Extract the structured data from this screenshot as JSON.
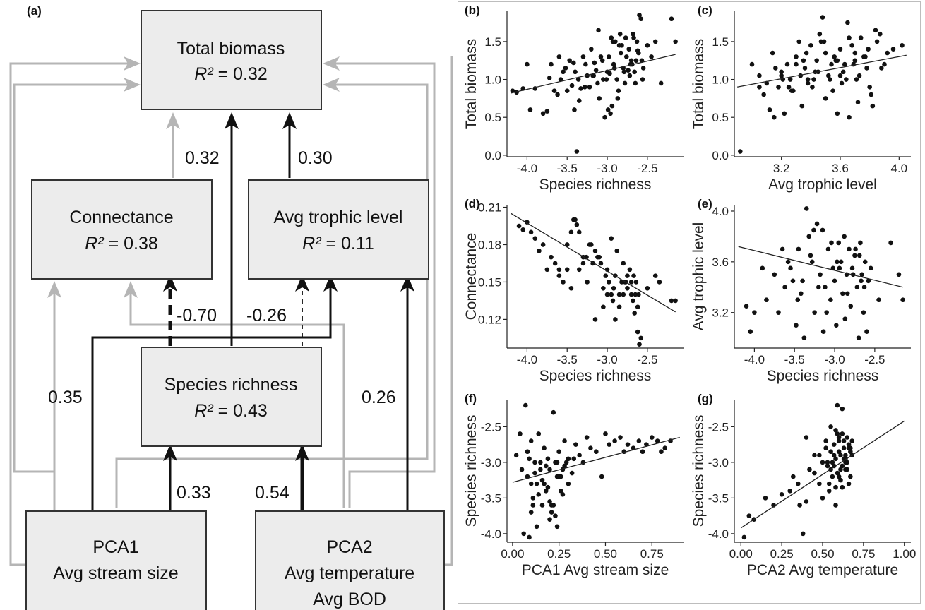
{
  "diagram": {
    "panel_label": "(a)",
    "nodes": {
      "total_biomass": {
        "title": "Total biomass",
        "r2_prefix": "R²",
        "r2_value": "= 0.32"
      },
      "connectance": {
        "title": "Connectance",
        "r2_prefix": "R²",
        "r2_value": "= 0.38"
      },
      "avg_trophic": {
        "title": "Avg trophic level",
        "r2_prefix": "R²",
        "r2_value": "= 0.11"
      },
      "species_richness": {
        "title": "Species richness",
        "r2_prefix": "R²",
        "r2_value": "= 0.43"
      },
      "pca1": {
        "line1": "PCA1",
        "line2": "Avg stream size"
      },
      "pca2": {
        "line1": "PCA2",
        "line2": "Avg temperature",
        "line3": "Avg BOD"
      }
    },
    "coefficients": {
      "connectance_to_biomass": "0.32",
      "trophic_to_biomass": "0.30",
      "richness_to_connectance": "-0.70",
      "richness_to_trophic": "-0.26",
      "pca1_to_trophic": "0.35",
      "pca2_to_trophic": "0.26",
      "pca1_to_richness": "0.33",
      "pca2_to_richness": "0.54"
    },
    "colors": {
      "significant": "#111111",
      "nonsignificant": "#b5b5b5",
      "box_fill": "#ececec"
    }
  },
  "chart_data": [
    {
      "panel": "(b)",
      "type": "scatter",
      "xlabel": "Species  richness",
      "ylabel": "Total  biomass",
      "xlim": [
        -4.25,
        -2.05
      ],
      "ylim": [
        -0.02,
        1.9
      ],
      "xticks": [
        -4.0,
        -3.5,
        -3.0,
        -2.5
      ],
      "yticks": [
        0.0,
        0.5,
        1.0,
        1.5
      ],
      "tick_labels_x": [
        "-4.0",
        "-3.5",
        "-3.0",
        "-2.5"
      ],
      "tick_labels_y": [
        "0.0",
        "0.5",
        "1.0",
        "1.5"
      ],
      "trend": {
        "x": [
          -4.2,
          -2.15
        ],
        "y": [
          0.82,
          1.33
        ]
      },
      "x": [
        -4.18,
        -4.13,
        -4.05,
        -4.0,
        -3.96,
        -3.8,
        -3.75,
        -3.72,
        -3.66,
        -3.62,
        -3.58,
        -3.55,
        -3.5,
        -3.47,
        -3.44,
        -3.41,
        -3.38,
        -3.35,
        -3.3,
        -3.27,
        -3.25,
        -3.22,
        -3.2,
        -3.17,
        -3.14,
        -3.12,
        -3.1,
        -3.08,
        -3.05,
        -3.03,
        -3.0,
        -2.98,
        -2.96,
        -2.94,
        -2.92,
        -2.9,
        -2.88,
        -2.86,
        -2.84,
        -2.82,
        -2.8,
        -2.78,
        -2.76,
        -2.74,
        -2.72,
        -2.7,
        -2.68,
        -2.66,
        -2.65,
        -2.63,
        -2.61,
        -2.6,
        -2.58,
        -2.56,
        -3.9,
        -3.6,
        -3.52,
        -3.42,
        -3.36,
        -3.28,
        -3.16,
        -3.06,
        -3.01,
        -2.97,
        -2.93,
        -2.87,
        -2.83,
        -2.79,
        -2.73,
        -2.69,
        -2.64,
        -2.57,
        -2.5,
        -2.45,
        -2.4,
        -2.33,
        -2.2,
        -2.15,
        -3.7,
        -3.33,
        -3.18,
        -3.11,
        -2.99,
        -2.91,
        -2.85,
        -2.77,
        -2.71,
        -2.67,
        -2.62,
        -2.55,
        -3.4,
        -2.95
      ],
      "y": [
        0.85,
        0.83,
        0.88,
        1.2,
        0.6,
        0.55,
        0.58,
        1.02,
        0.85,
        0.8,
        1.0,
        1.1,
        0.85,
        1.25,
        0.92,
        0.6,
        0.05,
        0.72,
        1.3,
        1.2,
        1.05,
        0.9,
        1.4,
        1.05,
        1.12,
        0.95,
        0.75,
        1.3,
        1.0,
        0.5,
        1.1,
        1.3,
        0.55,
        0.65,
        1.2,
        1.5,
        1.0,
        0.85,
        1.6,
        1.45,
        1.15,
        0.95,
        1.3,
        1.12,
        1.05,
        1.25,
        1.6,
        1.1,
        0.95,
        1.5,
        1.35,
        1.85,
        1.8,
        1.0,
        0.88,
        1.3,
        1.15,
        1.22,
        1.0,
        0.9,
        1.22,
        1.25,
        1.0,
        1.08,
        1.5,
        0.75,
        1.35,
        1.1,
        1.4,
        1.2,
        1.25,
        1.25,
        1.45,
        1.3,
        1.5,
        0.95,
        1.8,
        1.5,
        1.2,
        0.88,
        1.05,
        1.65,
        0.6,
        1.15,
        1.45,
        1.55,
        1.2,
        1.55,
        1.38,
        1.15,
        1.1,
        1.55
      ]
    },
    {
      "panel": "(c)",
      "type": "scatter",
      "xlabel": "Avg  trophic level",
      "ylabel": "Total  biomass",
      "xlim": [
        2.88,
        4.08
      ],
      "ylim": [
        -0.02,
        1.9
      ],
      "xticks": [
        3.2,
        3.6,
        4.0
      ],
      "yticks": [
        0.0,
        0.5,
        1.0,
        1.5
      ],
      "tick_labels_x": [
        "3.2",
        "3.6",
        "4.0"
      ],
      "tick_labels_y": [
        "0.0",
        "0.5",
        "1.0",
        "1.5"
      ],
      "trend": {
        "x": [
          2.9,
          4.05
        ],
        "y": [
          0.9,
          1.32
        ]
      },
      "x": [
        2.92,
        3.0,
        3.05,
        3.08,
        3.12,
        3.15,
        3.18,
        3.2,
        3.22,
        3.24,
        3.26,
        3.28,
        3.3,
        3.32,
        3.34,
        3.36,
        3.38,
        3.4,
        3.42,
        3.44,
        3.46,
        3.48,
        3.5,
        3.52,
        3.54,
        3.56,
        3.58,
        3.6,
        3.62,
        3.64,
        3.66,
        3.68,
        3.7,
        3.72,
        3.74,
        3.76,
        3.78,
        3.8,
        3.82,
        3.85,
        3.88,
        3.92,
        3.96,
        4.02,
        3.1,
        3.16,
        3.21,
        3.27,
        3.33,
        3.37,
        3.41,
        3.45,
        3.49,
        3.53,
        3.57,
        3.61,
        3.65,
        3.69,
        3.73,
        3.77,
        3.81,
        3.87,
        3.14,
        3.25,
        3.35,
        3.43,
        3.55,
        3.63,
        3.71,
        3.79,
        3.9,
        3.05,
        3.2,
        3.3,
        3.5,
        3.6,
        3.7,
        3.84,
        3.47,
        3.58,
        3.38,
        3.66
      ],
      "y": [
        0.05,
        1.2,
        1.05,
        0.8,
        0.6,
        0.5,
        0.9,
        1.1,
        0.55,
        1.2,
        1.0,
        0.85,
        1.3,
        1.5,
        0.65,
        1.15,
        0.95,
        1.45,
        1.0,
        1.25,
        1.6,
        1.82,
        0.75,
        1.05,
        1.2,
        1.3,
        0.55,
        1.4,
        1.1,
        1.0,
        0.5,
        1.45,
        1.25,
        0.7,
        1.55,
        1.3,
        1.15,
        0.9,
        0.65,
        1.5,
        1.15,
        1.35,
        1.4,
        1.45,
        0.95,
        1.15,
        1.0,
        0.85,
        1.05,
        1.35,
        0.9,
        1.1,
        1.5,
        1.0,
        1.25,
        0.95,
        1.75,
        1.2,
        1.05,
        1.3,
        0.8,
        1.6,
        1.35,
        0.9,
        1.25,
        1.1,
        0.85,
        1.2,
        1.0,
        1.4,
        1.2,
        0.9,
        1.05,
        1.2,
        1.35,
        1.05,
        1.35,
        1.65,
        1.5,
        1.25,
        1.0,
        1.55
      ]
    },
    {
      "panel": "(d)",
      "type": "scatter",
      "xlabel": "Species  richness",
      "ylabel": "Connectance",
      "xlim": [
        -4.25,
        -2.05
      ],
      "ylim": [
        0.097,
        0.212
      ],
      "xticks": [
        -4.0,
        -3.5,
        -3.0,
        -2.5
      ],
      "yticks": [
        0.12,
        0.15,
        0.18,
        0.21
      ],
      "tick_labels_x": [
        "-4.0",
        "-3.5",
        "-3.0",
        "-2.5"
      ],
      "tick_labels_y": [
        "0.12",
        "0.15",
        "0.18",
        "0.21"
      ],
      "trend": {
        "x": [
          -4.2,
          -2.15
        ],
        "y": [
          0.205,
          0.126
        ]
      },
      "x": [
        -4.1,
        -4.05,
        -4.0,
        -3.95,
        -3.9,
        -3.85,
        -3.8,
        -3.75,
        -3.7,
        -3.65,
        -3.6,
        -3.55,
        -3.5,
        -3.45,
        -3.42,
        -3.38,
        -3.35,
        -3.3,
        -3.26,
        -3.22,
        -3.18,
        -3.15,
        -3.12,
        -3.08,
        -3.05,
        -3.02,
        -3.0,
        -2.98,
        -2.95,
        -2.92,
        -2.9,
        -2.88,
        -2.85,
        -2.82,
        -2.8,
        -2.78,
        -2.75,
        -2.72,
        -2.7,
        -2.68,
        -2.66,
        -2.64,
        -2.62,
        -2.6,
        -2.58,
        -2.5,
        -2.4,
        -2.35,
        -2.2,
        -2.15,
        -3.5,
        -3.4,
        -3.3,
        -3.2,
        -3.1,
        -3.0,
        -2.9,
        -2.8,
        -2.7,
        -2.65,
        -3.6,
        -3.45,
        -3.25,
        -3.15,
        -2.95,
        -2.85,
        -2.75,
        -2.67,
        -2.61,
        -3.35,
        -3.05,
        -2.93,
        -2.77,
        -2.62
      ],
      "y": [
        0.195,
        0.192,
        0.198,
        0.19,
        0.185,
        0.175,
        0.18,
        0.16,
        0.17,
        0.165,
        0.155,
        0.15,
        0.16,
        0.145,
        0.2,
        0.196,
        0.19,
        0.17,
        0.17,
        0.18,
        0.165,
        0.175,
        0.17,
        0.165,
        0.13,
        0.155,
        0.14,
        0.15,
        0.185,
        0.145,
        0.12,
        0.175,
        0.14,
        0.15,
        0.165,
        0.15,
        0.155,
        0.16,
        0.14,
        0.135,
        0.125,
        0.15,
        0.11,
        0.1,
        0.105,
        0.145,
        0.155,
        0.15,
        0.135,
        0.135,
        0.18,
        0.2,
        0.165,
        0.18,
        0.17,
        0.16,
        0.155,
        0.14,
        0.15,
        0.14,
        0.16,
        0.19,
        0.15,
        0.12,
        0.14,
        0.13,
        0.145,
        0.155,
        0.14,
        0.16,
        0.145,
        0.135,
        0.15,
        0.13
      ]
    },
    {
      "panel": "(e)",
      "type": "scatter",
      "xlabel": "Species  richness",
      "ylabel": "Avg  trophic level",
      "xlim": [
        -4.25,
        -2.05
      ],
      "ylim": [
        2.92,
        4.05
      ],
      "xticks": [
        -4.0,
        -3.5,
        -3.0,
        -2.5
      ],
      "yticks": [
        3.2,
        3.6,
        4.0
      ],
      "tick_labels_x": [
        "-4.0",
        "-3.5",
        "-3.0",
        "-2.5"
      ],
      "tick_labels_y": [
        "3.2",
        "3.6",
        "4.0"
      ],
      "trend": {
        "x": [
          -4.2,
          -2.15
        ],
        "y": [
          3.72,
          3.4
        ]
      },
      "x": [
        -4.1,
        -4.05,
        -4.0,
        -3.9,
        -3.85,
        -3.75,
        -3.7,
        -3.62,
        -3.58,
        -3.52,
        -3.48,
        -3.45,
        -3.42,
        -3.38,
        -3.35,
        -3.32,
        -3.28,
        -3.25,
        -3.22,
        -3.18,
        -3.15,
        -3.12,
        -3.08,
        -3.05,
        -3.02,
        -3.0,
        -2.98,
        -2.95,
        -2.92,
        -2.9,
        -2.88,
        -2.85,
        -2.82,
        -2.8,
        -2.78,
        -2.75,
        -2.72,
        -2.7,
        -2.68,
        -2.66,
        -2.64,
        -2.62,
        -2.6,
        -2.58,
        -2.55,
        -2.45,
        -2.3,
        -2.2,
        -2.15,
        -3.55,
        -3.4,
        -3.3,
        -3.2,
        -3.1,
        -2.97,
        -2.87,
        -2.77,
        -2.69,
        -2.63,
        -3.65,
        -3.46,
        -3.26,
        -3.14,
        -3.04,
        -2.94,
        -2.84,
        -2.74,
        -2.67
      ],
      "y": [
        3.25,
        3.05,
        3.2,
        3.55,
        3.3,
        3.5,
        3.2,
        3.4,
        3.6,
        3.45,
        3.1,
        3.7,
        3.35,
        3.0,
        4.02,
        3.8,
        3.6,
        3.2,
        3.9,
        3.5,
        3.85,
        3.4,
        3.7,
        3.3,
        3.55,
        3.45,
        3.1,
        3.75,
        3.6,
        3.35,
        3.8,
        3.5,
        3.7,
        3.25,
        3.55,
        3.65,
        3.4,
        3.0,
        3.75,
        3.5,
        3.2,
        3.6,
        3.05,
        3.45,
        3.55,
        3.3,
        3.75,
        3.5,
        3.3,
        3.55,
        3.45,
        3.65,
        3.4,
        3.2,
        3.6,
        3.15,
        3.5,
        3.65,
        3.4,
        3.7,
        3.3,
        3.85,
        3.05,
        3.75,
        3.55,
        3.35,
        3.7,
        3.45
      ]
    },
    {
      "panel": "(f)",
      "type": "scatter",
      "xlabel": "PCA1  Avg   stream size",
      "ylabel": "Species  richness",
      "xlim": [
        -0.03,
        0.92
      ],
      "ylim": [
        -4.12,
        -2.12
      ],
      "xticks": [
        0.0,
        0.25,
        0.5,
        0.75
      ],
      "yticks": [
        -4.0,
        -3.5,
        -3.0,
        -2.5
      ],
      "tick_labels_x": [
        "0.00",
        "0.25",
        "0.50",
        "0.75"
      ],
      "tick_labels_y": [
        "-4.0",
        "-3.5",
        "-3.0",
        "-2.5"
      ],
      "trend": {
        "x": [
          0.0,
          0.9
        ],
        "y": [
          -3.28,
          -2.65
        ]
      },
      "x": [
        0.02,
        0.04,
        0.06,
        0.07,
        0.08,
        0.09,
        0.1,
        0.11,
        0.12,
        0.13,
        0.14,
        0.15,
        0.16,
        0.17,
        0.18,
        0.19,
        0.2,
        0.21,
        0.22,
        0.23,
        0.24,
        0.25,
        0.26,
        0.27,
        0.28,
        0.29,
        0.3,
        0.32,
        0.34,
        0.36,
        0.38,
        0.4,
        0.42,
        0.45,
        0.48,
        0.5,
        0.52,
        0.55,
        0.58,
        0.6,
        0.62,
        0.65,
        0.68,
        0.7,
        0.72,
        0.75,
        0.78,
        0.8,
        0.82,
        0.85,
        0.05,
        0.08,
        0.1,
        0.12,
        0.14,
        0.16,
        0.18,
        0.2,
        0.22,
        0.24,
        0.26,
        0.28,
        0.3,
        0.33,
        0.1,
        0.13,
        0.15,
        0.17,
        0.19,
        0.21,
        0.23,
        0.25,
        0.27,
        0.09,
        0.11,
        0.2,
        0.24
      ],
      "y": [
        -2.9,
        -2.6,
        -4.0,
        -2.2,
        -3.2,
        -4.05,
        -2.7,
        -3.5,
        -3.0,
        -3.3,
        -2.6,
        -3.1,
        -3.6,
        -2.8,
        -3.4,
        -2.95,
        -3.1,
        -3.7,
        -2.3,
        -3.0,
        -3.2,
        -2.85,
        -3.4,
        -3.1,
        -2.7,
        -3.0,
        -2.95,
        -3.15,
        -2.75,
        -2.9,
        -3.0,
        -2.65,
        -2.8,
        -2.85,
        -3.2,
        -2.6,
        -2.75,
        -2.7,
        -2.65,
        -2.85,
        -2.75,
        -2.8,
        -2.7,
        -2.85,
        -2.75,
        -2.65,
        -2.7,
        -2.85,
        -2.8,
        -2.7,
        -3.1,
        -2.85,
        -3.3,
        -3.15,
        -3.45,
        -3.25,
        -3.05,
        -3.55,
        -3.6,
        -3.9,
        -3.2,
        -3.05,
        -3.3,
        -2.95,
        -3.7,
        -3.9,
        -3.0,
        -3.3,
        -3.35,
        -3.6,
        -3.75,
        -3.2,
        -3.45,
        -2.95,
        -3.6,
        -3.8,
        -3.0
      ]
    },
    {
      "panel": "(g)",
      "type": "scatter",
      "xlabel": "PCA2  Avg   temperature",
      "ylabel": "Species  richness",
      "xlim": [
        -0.04,
        1.04
      ],
      "ylim": [
        -4.12,
        -2.12
      ],
      "xticks": [
        0.0,
        0.25,
        0.5,
        0.75,
        1.0
      ],
      "yticks": [
        -4.0,
        -3.5,
        -3.0,
        -2.5
      ],
      "tick_labels_x": [
        "0.00",
        "0.25",
        "0.50",
        "0.75",
        "1.00"
      ],
      "tick_labels_y": [
        "-4.0",
        "-3.5",
        "-3.0",
        "-2.5"
      ],
      "trend": {
        "x": [
          0.0,
          1.0
        ],
        "y": [
          -3.92,
          -2.42
        ]
      },
      "x": [
        0.02,
        0.05,
        0.08,
        0.15,
        0.2,
        0.25,
        0.3,
        0.32,
        0.35,
        0.38,
        0.4,
        0.42,
        0.45,
        0.48,
        0.5,
        0.52,
        0.54,
        0.55,
        0.56,
        0.57,
        0.58,
        0.59,
        0.6,
        0.61,
        0.62,
        0.63,
        0.64,
        0.65,
        0.66,
        0.67,
        0.68,
        0.52,
        0.53,
        0.55,
        0.57,
        0.58,
        0.59,
        0.6,
        0.61,
        0.62,
        0.63,
        0.64,
        0.65,
        0.66,
        0.67,
        0.68,
        0.5,
        0.54,
        0.56,
        0.58,
        0.6,
        0.62,
        0.64,
        0.66,
        0.55,
        0.57,
        0.59,
        0.61,
        0.63,
        0.65,
        0.67,
        0.45,
        0.48,
        0.4,
        0.36,
        0.53,
        0.58,
        0.62,
        0.64,
        0.6
      ],
      "y": [
        -4.05,
        -3.75,
        -3.8,
        -3.5,
        -3.6,
        -3.45,
        -3.4,
        -3.2,
        -3.3,
        -4.0,
        -2.65,
        -3.1,
        -2.9,
        -3.3,
        -3.0,
        -2.7,
        -3.4,
        -2.5,
        -3.2,
        -2.9,
        -3.6,
        -2.2,
        -2.7,
        -3.1,
        -2.25,
        -2.8,
        -3.0,
        -2.65,
        -3.3,
        -2.85,
        -2.7,
        -2.8,
        -3.0,
        -3.1,
        -2.75,
        -2.95,
        -3.15,
        -2.85,
        -2.9,
        -3.05,
        -2.7,
        -2.95,
        -3.0,
        -2.8,
        -3.2,
        -2.9,
        -3.5,
        -3.3,
        -3.0,
        -3.35,
        -3.2,
        -2.6,
        -3.1,
        -2.75,
        -2.85,
        -3.05,
        -2.6,
        -3.25,
        -2.95,
        -3.1,
        -2.8,
        -3.15,
        -2.9,
        -3.55,
        -3.6,
        -3.05,
        -2.55,
        -3.35,
        -2.9,
        -2.65
      ]
    }
  ]
}
